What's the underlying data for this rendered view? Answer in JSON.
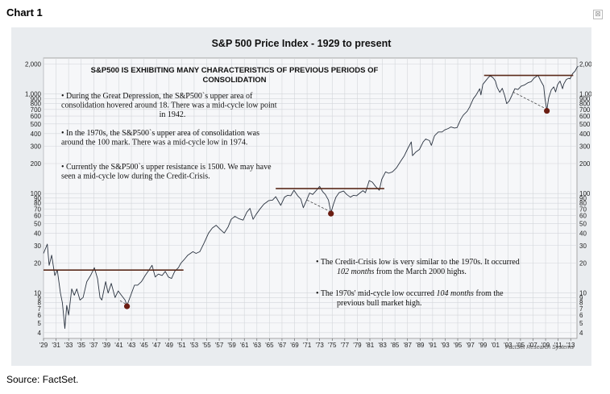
{
  "header": {
    "label": "Chart 1",
    "close_glyph": "⊠"
  },
  "footer": {
    "source": "Source: FactSet."
  },
  "chart_data": {
    "type": "line",
    "title": "S&P 500 Price Index - 1929 to present",
    "subtitle_lines": [
      "S&P500 IS EXHIBITING MANY CHARACTERISTICS OF PREVIOUS PERIODS OF",
      "CONSOLIDATION"
    ],
    "watermark": "FactSet Research Systems",
    "scale": "log",
    "ylim": [
      3.5,
      2300
    ],
    "xlim": [
      1929,
      2014
    ],
    "grid": true,
    "y_ticks": [
      "2,000",
      "1,000",
      "900",
      "800",
      "700",
      "600",
      "500",
      "400",
      "300",
      "200",
      "100",
      "90",
      "80",
      "70",
      "60",
      "50",
      "40",
      "30",
      "20",
      "10",
      "9",
      "8",
      "7",
      "6",
      "5",
      "4"
    ],
    "y_tick_values": [
      2000,
      1000,
      900,
      800,
      700,
      600,
      500,
      400,
      300,
      200,
      100,
      90,
      80,
      70,
      60,
      50,
      40,
      30,
      20,
      10,
      9,
      8,
      7,
      6,
      5,
      4
    ],
    "x_ticks": [
      "'29",
      "'31",
      "'33",
      "'35",
      "'37",
      "'39",
      "'41",
      "'43",
      "'45",
      "'47",
      "'49",
      "'51",
      "'53",
      "'55",
      "'57",
      "'59",
      "'61",
      "'63",
      "'65",
      "'67",
      "'69",
      "'71",
      "'73",
      "'75",
      "'77",
      "'79",
      "'81",
      "'83",
      "'85",
      "'87",
      "'89",
      "'91",
      "'93",
      "'95",
      "'97",
      "'99",
      "'01",
      "'03",
      "'05",
      "'07",
      "'09",
      "'11",
      "'13"
    ],
    "series": [
      {
        "points": [
          [
            1929.0,
            25
          ],
          [
            1929.6,
            31
          ],
          [
            1929.9,
            19
          ],
          [
            1930.3,
            24
          ],
          [
            1930.8,
            15
          ],
          [
            1931.2,
            17
          ],
          [
            1931.7,
            10
          ],
          [
            1932.0,
            8
          ],
          [
            1932.4,
            4.4
          ],
          [
            1932.7,
            7.5
          ],
          [
            1933.0,
            6
          ],
          [
            1933.5,
            11
          ],
          [
            1933.9,
            9.5
          ],
          [
            1934.3,
            11
          ],
          [
            1934.8,
            8.5
          ],
          [
            1935.3,
            9
          ],
          [
            1935.9,
            13
          ],
          [
            1936.5,
            15
          ],
          [
            1937.1,
            18
          ],
          [
            1937.6,
            14
          ],
          [
            1938.0,
            9
          ],
          [
            1938.3,
            8.5
          ],
          [
            1938.9,
            13
          ],
          [
            1939.3,
            10
          ],
          [
            1939.8,
            12.5
          ],
          [
            1940.4,
            9
          ],
          [
            1940.9,
            10.5
          ],
          [
            1941.4,
            9.5
          ],
          [
            1942.0,
            8.5
          ],
          [
            1942.3,
            7.5
          ],
          [
            1942.9,
            9.5
          ],
          [
            1943.5,
            12
          ],
          [
            1944.0,
            12
          ],
          [
            1944.6,
            13
          ],
          [
            1945.2,
            15
          ],
          [
            1945.8,
            17
          ],
          [
            1946.3,
            19
          ],
          [
            1946.8,
            14.5
          ],
          [
            1947.3,
            15.5
          ],
          [
            1947.9,
            15
          ],
          [
            1948.4,
            16.5
          ],
          [
            1948.9,
            14.5
          ],
          [
            1949.4,
            14
          ],
          [
            1949.9,
            16.5
          ],
          [
            1950.5,
            18
          ],
          [
            1950.9,
            20
          ],
          [
            1951.5,
            22
          ],
          [
            1952.0,
            24
          ],
          [
            1952.8,
            26
          ],
          [
            1953.3,
            25
          ],
          [
            1953.9,
            26
          ],
          [
            1954.6,
            32
          ],
          [
            1955.3,
            40
          ],
          [
            1955.9,
            45
          ],
          [
            1956.5,
            48
          ],
          [
            1957.1,
            44
          ],
          [
            1957.8,
            40
          ],
          [
            1958.4,
            46
          ],
          [
            1958.9,
            55
          ],
          [
            1959.5,
            59
          ],
          [
            1960.1,
            56
          ],
          [
            1960.8,
            54
          ],
          [
            1961.4,
            65
          ],
          [
            1961.9,
            71
          ],
          [
            1962.4,
            55
          ],
          [
            1962.9,
            62
          ],
          [
            1963.5,
            70
          ],
          [
            1964.1,
            78
          ],
          [
            1964.9,
            85
          ],
          [
            1965.5,
            86
          ],
          [
            1966.0,
            93
          ],
          [
            1966.8,
            76
          ],
          [
            1967.4,
            92
          ],
          [
            1967.9,
            96
          ],
          [
            1968.4,
            95
          ],
          [
            1968.9,
            108
          ],
          [
            1969.5,
            95
          ],
          [
            1970.0,
            88
          ],
          [
            1970.4,
            72
          ],
          [
            1970.9,
            85
          ],
          [
            1971.4,
            101
          ],
          [
            1971.9,
            98
          ],
          [
            1972.5,
            108
          ],
          [
            1973.0,
            118
          ],
          [
            1973.5,
            104
          ],
          [
            1973.9,
            98
          ],
          [
            1974.4,
            86
          ],
          [
            1974.8,
            64
          ],
          [
            1975.2,
            78
          ],
          [
            1975.6,
            92
          ],
          [
            1976.1,
            102
          ],
          [
            1976.8,
            106
          ],
          [
            1977.3,
            98
          ],
          [
            1977.9,
            92
          ],
          [
            1978.4,
            96
          ],
          [
            1978.9,
            95
          ],
          [
            1979.4,
            101
          ],
          [
            1979.9,
            107
          ],
          [
            1980.3,
            102
          ],
          [
            1980.9,
            135
          ],
          [
            1981.4,
            130
          ],
          [
            1981.9,
            118
          ],
          [
            1982.5,
            108
          ],
          [
            1982.9,
            139
          ],
          [
            1983.5,
            165
          ],
          [
            1984.0,
            160
          ],
          [
            1984.6,
            165
          ],
          [
            1985.2,
            180
          ],
          [
            1985.9,
            211
          ],
          [
            1986.5,
            240
          ],
          [
            1987.0,
            280
          ],
          [
            1987.6,
            330
          ],
          [
            1987.8,
            240
          ],
          [
            1988.3,
            260
          ],
          [
            1988.9,
            277
          ],
          [
            1989.5,
            330
          ],
          [
            1989.9,
            353
          ],
          [
            1990.5,
            340
          ],
          [
            1990.8,
            305
          ],
          [
            1991.3,
            380
          ],
          [
            1991.9,
            415
          ],
          [
            1992.5,
            415
          ],
          [
            1992.9,
            435
          ],
          [
            1993.5,
            450
          ],
          [
            1993.9,
            466
          ],
          [
            1994.5,
            455
          ],
          [
            1994.9,
            460
          ],
          [
            1995.5,
            560
          ],
          [
            1995.9,
            615
          ],
          [
            1996.5,
            670
          ],
          [
            1996.9,
            740
          ],
          [
            1997.5,
            900
          ],
          [
            1997.9,
            970
          ],
          [
            1998.5,
            1130
          ],
          [
            1998.7,
            980
          ],
          [
            1999.0,
            1250
          ],
          [
            1999.5,
            1370
          ],
          [
            1999.9,
            1470
          ],
          [
            2000.2,
            1530
          ],
          [
            2000.7,
            1440
          ],
          [
            2001.0,
            1350
          ],
          [
            2001.3,
            1160
          ],
          [
            2001.7,
            1040
          ],
          [
            2002.1,
            1140
          ],
          [
            2002.5,
            960
          ],
          [
            2002.8,
            800
          ],
          [
            2003.2,
            850
          ],
          [
            2003.7,
            990
          ],
          [
            2004.1,
            1130
          ],
          [
            2004.6,
            1110
          ],
          [
            2005.1,
            1200
          ],
          [
            2005.6,
            1230
          ],
          [
            2006.2,
            1300
          ],
          [
            2006.7,
            1330
          ],
          [
            2007.2,
            1450
          ],
          [
            2007.8,
            1540
          ],
          [
            2008.3,
            1330
          ],
          [
            2008.7,
            1200
          ],
          [
            2008.9,
            900
          ],
          [
            2009.2,
            690
          ],
          [
            2009.5,
            920
          ],
          [
            2009.9,
            1100
          ],
          [
            2010.3,
            1180
          ],
          [
            2010.6,
            1050
          ],
          [
            2010.9,
            1240
          ],
          [
            2011.3,
            1350
          ],
          [
            2011.7,
            1130
          ],
          [
            2011.9,
            1260
          ],
          [
            2012.3,
            1400
          ],
          [
            2012.7,
            1440
          ],
          [
            2012.9,
            1420
          ],
          [
            2013.3,
            1600
          ],
          [
            2013.7,
            1700
          ],
          [
            2014.0,
            1850
          ],
          [
            2014.2,
            1900
          ]
        ]
      }
    ],
    "resistance_lines": [
      {
        "x": [
          1929,
          1951.3
        ],
        "y": 17
      },
      {
        "x": [
          1966,
          1983.3
        ],
        "y": 112
      },
      {
        "x": [
          1999.2,
          2013.4
        ],
        "y": 1540
      }
    ],
    "lows": [
      {
        "x": 1942.3,
        "y": 7.5,
        "from_x": 1941.2,
        "from_y": 8.4
      },
      {
        "x": 1974.8,
        "y": 64,
        "from_x": 1971.0,
        "from_y": 86
      },
      {
        "x": 2009.2,
        "y": 690,
        "from_x": 2003.8,
        "from_y": 1050
      }
    ],
    "annotations_left": [
      [
        "•   During the Great Depression, the S&P500`s upper area of",
        "consolidation hovered around 18.  There was a mid-cycle low point",
        "in 1942."
      ],
      [
        "•   In the 1970s, the S&P500`s upper area of consolidation was",
        "around the 100 mark.  There was a mid-cycle low in 1974."
      ],
      [
        "•   Currently the S&P500`s upper resistance is 1500.  We may have",
        "seen a mid-cycle low during the Credit-Crisis."
      ]
    ],
    "annotations_right": [
      {
        "pre": "•   The Credit-Crisis low is very similar to the 1970s.  It occurred",
        "italic": "102 months",
        "post": " from the March 2000 highs."
      },
      {
        "pre": "•   The 1970s' mid-cycle low occurred ",
        "italic": "104 months",
        "post": " from the",
        "line2": "previous bull market high."
      }
    ]
  }
}
